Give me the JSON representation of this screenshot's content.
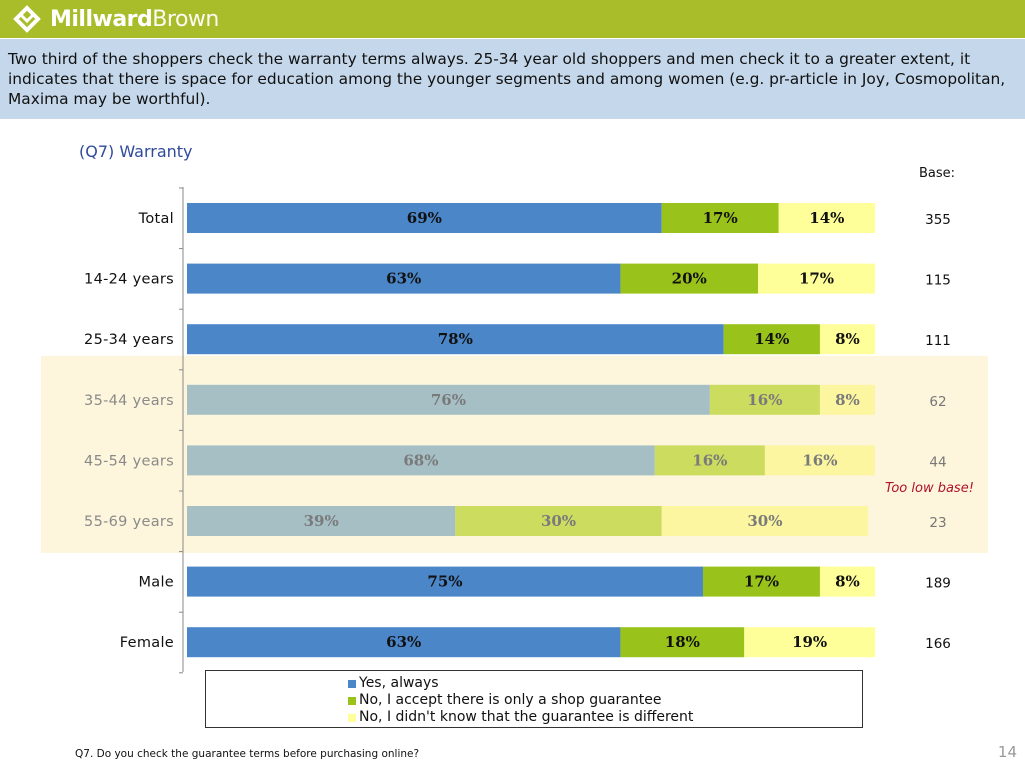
{
  "header": {
    "brand_part1": "Millward",
    "brand_part2": "Brown",
    "logo_icon": "millward-brown-logo-icon"
  },
  "headline": "Two third of the shoppers check the warranty terms always. 25-34 year old shoppers and men  check it to a greater extent, it indicates that there is space for education among the younger segments and among women (e.g. pr-article in Joy, Cosmopolitan, Maxima may be worthful).",
  "base_header": "Base:",
  "too_low_note": "Too low base!",
  "footnote": "Q7. Do you check the guarantee terms before purchasing online?",
  "page_number": "14",
  "colors": {
    "yes": "#4a86c8",
    "shop": "#99c31a",
    "didnt_know": "#ffff99",
    "yes_faded": "#a5bfc5",
    "shop_faded": "#cbdc5f",
    "didnt_know_faded": "#fdf6a0",
    "highlight_bg": "#fdf6dc",
    "label_faded": "#8a8a8a"
  },
  "chart_data": {
    "type": "bar",
    "orientation": "horizontal",
    "stacked": true,
    "title": "(Q7) Warranty",
    "categories": [
      "Total",
      "14-24 years",
      "25-34 years",
      "35-44 years",
      "45-54 years",
      "55-69 years",
      "Male",
      "Female"
    ],
    "series": [
      {
        "name": "Yes, always",
        "values": [
          69,
          63,
          78,
          76,
          68,
          39,
          75,
          63
        ]
      },
      {
        "name": "No, I accept there is only a shop guarantee",
        "values": [
          17,
          20,
          14,
          16,
          16,
          30,
          17,
          18
        ]
      },
      {
        "name": "No, I didn't know that the guarantee is different",
        "values": [
          14,
          17,
          8,
          8,
          16,
          30,
          8,
          19
        ]
      }
    ],
    "data_labels": [
      [
        "69%",
        "63%",
        "78%",
        "76%",
        "68%",
        "39%",
        "75%",
        "63%"
      ],
      [
        "17%",
        "20%",
        "14%",
        "16%",
        "16%",
        "30%",
        "17%",
        "18%"
      ],
      [
        "14%",
        "17%",
        "8%",
        "8%",
        "16%",
        "30%",
        "8%",
        "19%"
      ]
    ],
    "bases": [
      "355",
      "115",
      "111",
      "62",
      "44",
      "23",
      "189",
      "166"
    ],
    "low_base_categories": [
      "35-44 years",
      "45-54 years",
      "55-69 years"
    ],
    "xlim": [
      0,
      100
    ],
    "legend_position": "bottom"
  }
}
